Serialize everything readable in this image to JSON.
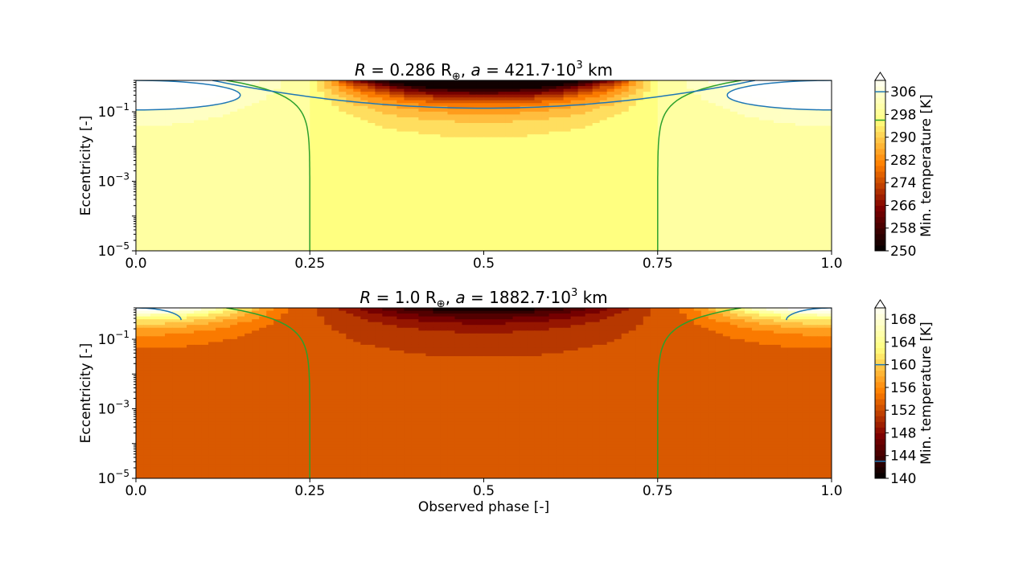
{
  "chart_data": [
    {
      "type": "heatmap",
      "title": "R = 0.286 R⊕, a = 421.7·10³ km",
      "title_parts": {
        "r_var": "R",
        "r_val": " = 0.286 R",
        "earth": "⊕",
        "a_var": "a",
        "a_val": " = 421.7·10",
        "a_exp": "3",
        "a_unit": " km"
      },
      "xlabel": "",
      "ylabel": "Eccentricity [-]",
      "xlim": [
        0.0,
        1.0
      ],
      "ylim": [
        1e-05,
        0.8
      ],
      "yscale": "log",
      "xticks": [
        "0.0",
        "0.25",
        "0.5",
        "0.75",
        "1.0"
      ],
      "xtick_values": [
        0.0,
        0.25,
        0.5,
        0.75,
        1.0
      ],
      "yticks": [
        {
          "base": "10",
          "exp": "−5",
          "value": 1e-05
        },
        {
          "base": "10",
          "exp": "−3",
          "value": 0.001
        },
        {
          "base": "10",
          "exp": "−1",
          "value": 0.1
        }
      ],
      "colorbar": {
        "label": "Min. temperature [K]",
        "ticks": [
          250,
          258,
          266,
          274,
          282,
          290,
          298,
          306
        ],
        "range": [
          250,
          310
        ],
        "extend": "max",
        "contour_lines": [
          {
            "value": 296,
            "color": "#2ca02c"
          },
          {
            "value": 306,
            "color": "#1f77b4"
          }
        ]
      },
      "field": {
        "baseline": 298,
        "dip_depth": 52,
        "blue_level": 306,
        "green_level": 296
      },
      "green_contour": {
        "crossings_x": [
          0.25,
          0.75
        ],
        "note_e_start": 0.8
      },
      "blue_contour": {
        "x_ranges": [
          [
            0.0,
            0.15
          ],
          [
            0.85,
            1.0
          ]
        ],
        "min_e_at_center": 0.18
      }
    },
    {
      "type": "heatmap",
      "title": "R = 1.0 R⊕, a = 1882.7·10³ km",
      "title_parts": {
        "r_var": "R",
        "r_val": " = 1.0 R",
        "earth": "⊕",
        "a_var": "a",
        "a_val": " = 1882.7·10",
        "a_exp": "3",
        "a_unit": " km"
      },
      "xlabel": "Observed phase [-]",
      "ylabel": "Eccentricity [-]",
      "xlim": [
        0.0,
        1.0
      ],
      "ylim": [
        1e-05,
        0.8
      ],
      "yscale": "log",
      "xticks": [
        "0.0",
        "0.25",
        "0.5",
        "0.75",
        "1.0"
      ],
      "xtick_values": [
        0.0,
        0.25,
        0.5,
        0.75,
        1.0
      ],
      "yticks": [
        {
          "base": "10",
          "exp": "−5",
          "value": 1e-05
        },
        {
          "base": "10",
          "exp": "−3",
          "value": 0.001
        },
        {
          "base": "10",
          "exp": "−1",
          "value": 0.1
        }
      ],
      "colorbar": {
        "label": "Min. temperature [K]",
        "ticks": [
          140,
          144,
          148,
          152,
          156,
          160,
          164,
          168
        ],
        "range": [
          140,
          170
        ],
        "extend": "max",
        "contour_lines": [
          {
            "value": 143,
            "color": "#1f77b4"
          },
          {
            "value": 160,
            "color": "#1f77b4"
          }
        ]
      },
      "field": {
        "baseline": 152.5,
        "hot_peak": 170,
        "cold_dip": 140
      },
      "green_contour": {
        "crossings_x": [
          0.25,
          0.75
        ]
      },
      "blue_contour": {
        "x_ranges": [
          [
            0.0,
            0.06
          ],
          [
            0.94,
            1.0
          ]
        ]
      }
    }
  ]
}
